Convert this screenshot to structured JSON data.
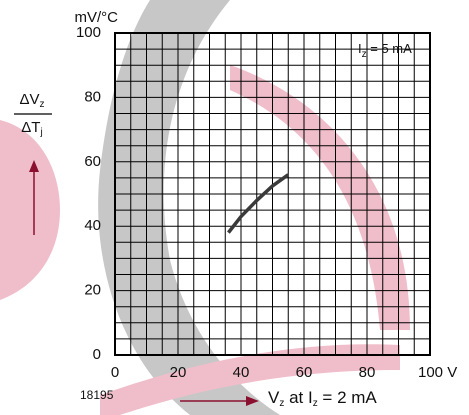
{
  "chart_data": {
    "type": "line",
    "y_unit": "mV/°C",
    "ylabel": {
      "numerator": [
        {
          "text": "ΔV"
        },
        {
          "sub": "z"
        }
      ],
      "denominator": [
        {
          "text": "ΔT"
        },
        {
          "sub": "j"
        }
      ]
    },
    "xlabel": [
      {
        "text": "V"
      },
      {
        "sub": "z"
      },
      {
        "text": " at I"
      },
      {
        "sub": "z"
      },
      {
        "text": " = 2 mA"
      }
    ],
    "annotation": [
      {
        "text": "I"
      },
      {
        "sub": "z"
      },
      {
        "text": " = 5 mA"
      }
    ],
    "figure_number": "18195",
    "x": [
      36,
      40,
      45,
      50,
      55
    ],
    "series": [
      {
        "color": "#3a3a3a",
        "values": [
          38,
          43,
          48,
          52.5,
          56
        ]
      }
    ],
    "xlim": [
      0,
      100
    ],
    "xticks": [
      0,
      20,
      40,
      60,
      80,
      {
        "value": 100,
        "label": "100 V"
      }
    ],
    "ylim": [
      0,
      100
    ],
    "yticks": [
      0,
      20,
      40,
      60,
      80,
      100
    ],
    "minor_ticks": [
      5,
      10,
      15,
      25,
      30,
      35,
      45,
      50,
      55,
      65,
      70,
      75,
      85,
      90,
      95
    ],
    "grid": true
  }
}
